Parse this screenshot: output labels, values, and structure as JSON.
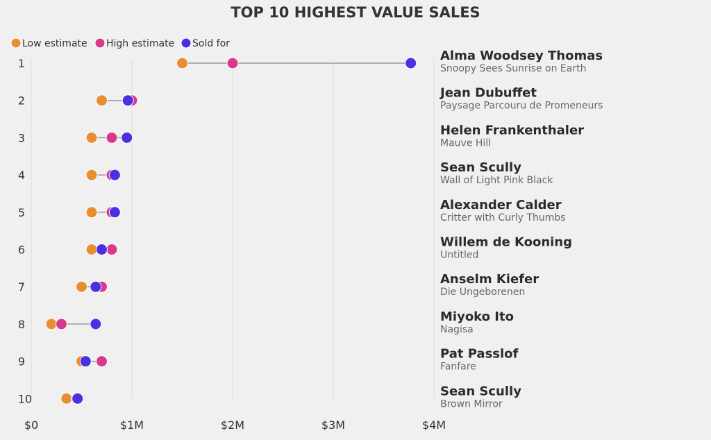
{
  "chart_data": {
    "type": "dumbbell",
    "title": "TOP 10 HIGHEST VALUE SALES",
    "xlabel": "",
    "ylabel": "",
    "xlim": [
      0,
      4000000
    ],
    "x_ticks": [
      0,
      1000000,
      2000000,
      3000000,
      4000000
    ],
    "x_tick_labels": [
      "$0",
      "$1M",
      "$2M",
      "$3M",
      "$4M"
    ],
    "grid": "vertical",
    "legend_position": "top-left",
    "series": [
      {
        "key": "low",
        "name": "Low estimate",
        "color": "#e88e31"
      },
      {
        "key": "high",
        "name": "High estimate",
        "color": "#d63a8a"
      },
      {
        "key": "sold",
        "name": "Sold for",
        "color": "#4a30e0"
      }
    ],
    "rows": [
      {
        "rank": "1",
        "artist": "Alma Woodsey Thomas",
        "work": "Snoopy Sees Sunrise on Earth",
        "low": 1500000,
        "high": 2000000,
        "sold": 3770000
      },
      {
        "rank": "2",
        "artist": "Jean Dubuffet",
        "work": "Paysage Parcouru de Promeneurs",
        "low": 700000,
        "high": 1000000,
        "sold": 960000
      },
      {
        "rank": "3",
        "artist": "Helen Frankenthaler",
        "work": "Mauve Hill",
        "low": 600000,
        "high": 800000,
        "sold": 950000
      },
      {
        "rank": "4",
        "artist": "Sean Scully",
        "work": "Wall of Light Pink Black",
        "low": 600000,
        "high": 800000,
        "sold": 830000
      },
      {
        "rank": "5",
        "artist": "Alexander Calder",
        "work": "Critter with Curly Thumbs",
        "low": 600000,
        "high": 800000,
        "sold": 830000
      },
      {
        "rank": "6",
        "artist": "Willem de Kooning",
        "work": "Untitled",
        "low": 600000,
        "high": 800000,
        "sold": 700000
      },
      {
        "rank": "7",
        "artist": "Anselm Kiefer",
        "work": "Die Ungeborenen",
        "low": 500000,
        "high": 700000,
        "sold": 640000
      },
      {
        "rank": "8",
        "artist": "Miyoko Ito",
        "work": "Nagisa",
        "low": 200000,
        "high": 300000,
        "sold": 640000
      },
      {
        "rank": "9",
        "artist": "Pat Passlof",
        "work": "Fanfare",
        "low": 500000,
        "high": 700000,
        "sold": 540000
      },
      {
        "rank": "10",
        "artist": "Sean Scully",
        "work": "Brown Mirror",
        "low": 350000,
        "high": 450000,
        "sold": 460000
      }
    ]
  }
}
